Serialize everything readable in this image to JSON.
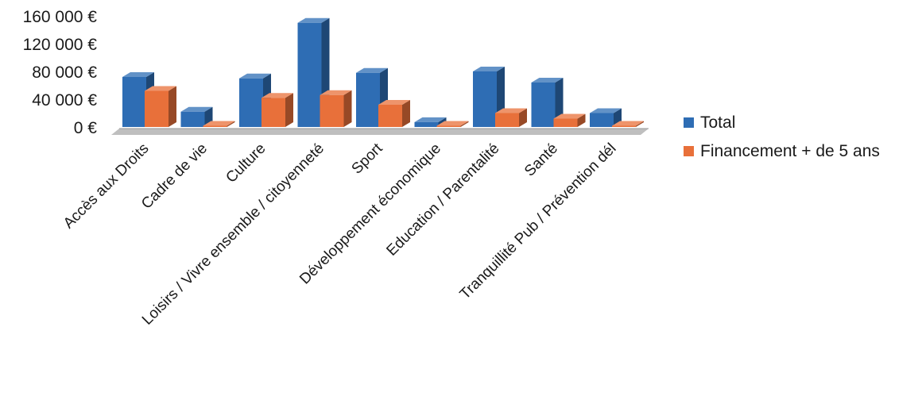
{
  "chart_data": {
    "type": "bar",
    "title": "",
    "xlabel": "",
    "ylabel": "",
    "categories": [
      "Accès aux Droits",
      "Cadre de vie",
      "Culture",
      "Loisirs / Vivre ensemble / citoyenneté",
      "Sport",
      "Développement économique",
      "Education / Parentalité",
      "Santé",
      "Tranquillité Pub / Prévention dél"
    ],
    "series": [
      {
        "name": "Total",
        "color": "#2e6db4",
        "values": [
          72000,
          22000,
          70000,
          150000,
          78000,
          7000,
          80000,
          64000,
          20000
        ]
      },
      {
        "name": "Financement + de 5 ans",
        "color": "#e8703a",
        "values": [
          52000,
          0,
          42000,
          46000,
          32000,
          0,
          20000,
          12000,
          0
        ]
      }
    ],
    "yticks": [
      "0 €",
      "40 000 €",
      "80 000 €",
      "120 000 €",
      "160 000 €"
    ],
    "ylim": [
      0,
      160000
    ],
    "grid": false,
    "legend_position": "right"
  }
}
